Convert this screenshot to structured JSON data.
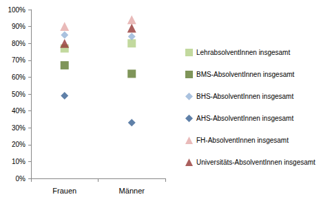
{
  "chart_data": {
    "type": "scatter",
    "categories": [
      "Frauen",
      "Männer"
    ],
    "series": [
      {
        "name": "LehrabsolventInnen insgesamt",
        "color": "#b3cf86",
        "marker": "square",
        "values": [
          77,
          80
        ]
      },
      {
        "name": "BMS-AbsolventInnen insgesamt",
        "color": "#5f7a2f",
        "marker": "square",
        "values": [
          67,
          62
        ]
      },
      {
        "name": "BHS-AbsolventInnen insgesamt",
        "color": "#95b3d7",
        "marker": "diamond",
        "values": [
          85,
          84
        ]
      },
      {
        "name": "AHS-AbsolventInnen insgesamt",
        "color": "#376092",
        "marker": "diamond",
        "values": [
          49,
          33
        ]
      },
      {
        "name": "FH-AbsolventInnen insgesamt",
        "color": "#e3a9a8",
        "marker": "triangle",
        "values": [
          90,
          94
        ]
      },
      {
        "name": "Universitäts-AbsolventInnen insgesamt",
        "color": "#953735",
        "marker": "triangle",
        "values": [
          80,
          89
        ]
      }
    ],
    "ylim": [
      0,
      100
    ],
    "yticks": [
      {
        "value": 0,
        "label": "0%"
      },
      {
        "value": 10,
        "label": "10%"
      },
      {
        "value": 20,
        "label": "20%"
      },
      {
        "value": 30,
        "label": "30%"
      },
      {
        "value": 40,
        "label": "40%"
      },
      {
        "value": 50,
        "label": "50%"
      },
      {
        "value": 60,
        "label": "60%"
      },
      {
        "value": 70,
        "label": "70%"
      },
      {
        "value": 80,
        "label": "80%"
      },
      {
        "value": 90,
        "label": "90%"
      },
      {
        "value": 100,
        "label": "100%"
      }
    ],
    "grid": false,
    "legend": "right"
  }
}
